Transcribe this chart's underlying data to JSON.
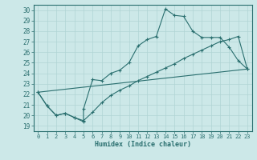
{
  "xlabel": "Humidex (Indice chaleur)",
  "xlim": [
    -0.5,
    23.5
  ],
  "ylim": [
    18.5,
    30.5
  ],
  "yticks": [
    19,
    20,
    21,
    22,
    23,
    24,
    25,
    26,
    27,
    28,
    29,
    30
  ],
  "xticks": [
    0,
    1,
    2,
    3,
    4,
    5,
    6,
    7,
    8,
    9,
    10,
    11,
    12,
    13,
    14,
    15,
    16,
    17,
    18,
    19,
    20,
    21,
    22,
    23
  ],
  "bg_color": "#cce8e8",
  "grid_color": "#b0d4d4",
  "line_color": "#2a6f6f",
  "line1_x": [
    0,
    1,
    2,
    3,
    4,
    5,
    5,
    6,
    7,
    8,
    9,
    10,
    11,
    12,
    13,
    14,
    15,
    16,
    17,
    18,
    19,
    20,
    21,
    22,
    23
  ],
  "line1_y": [
    22.2,
    20.9,
    20.0,
    20.2,
    19.8,
    19.4,
    20.6,
    23.4,
    23.3,
    24.0,
    24.3,
    25.0,
    26.6,
    27.2,
    27.5,
    30.1,
    29.5,
    29.4,
    28.0,
    27.4,
    27.4,
    27.4,
    26.5,
    25.2,
    24.4
  ],
  "line2_x": [
    0,
    1,
    2,
    3,
    4,
    5,
    6,
    7,
    8,
    9,
    10,
    11,
    12,
    13,
    14,
    15,
    16,
    17,
    18,
    19,
    20,
    21,
    22,
    23
  ],
  "line2_y": [
    22.2,
    20.9,
    20.0,
    20.2,
    19.8,
    19.5,
    20.3,
    21.2,
    21.9,
    22.4,
    22.8,
    23.3,
    23.7,
    24.1,
    24.5,
    24.9,
    25.4,
    25.8,
    26.2,
    26.6,
    27.0,
    27.2,
    27.5,
    24.4
  ],
  "line3_x": [
    0,
    23
  ],
  "line3_y": [
    22.2,
    24.4
  ]
}
